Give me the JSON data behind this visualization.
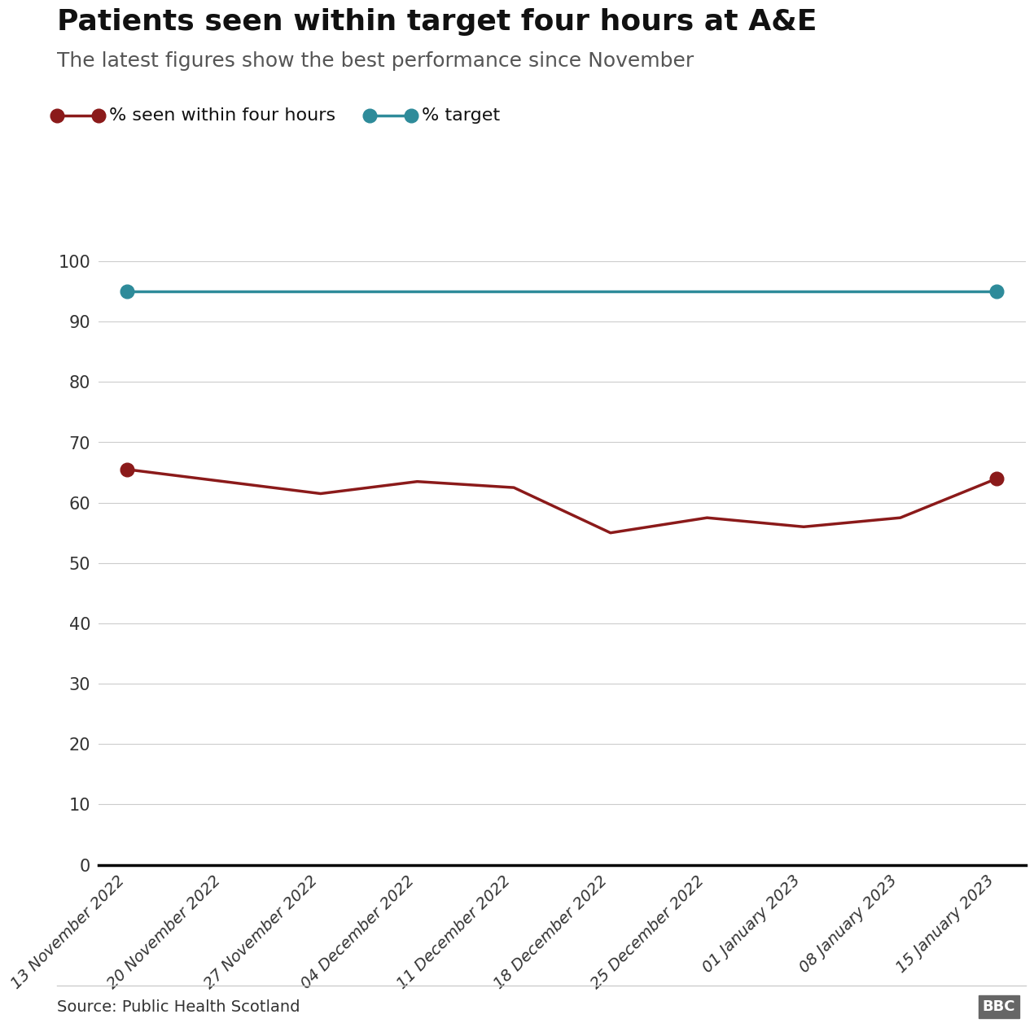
{
  "title": "Patients seen within target four hours at A&E",
  "subtitle": "The latest figures show the best performance since November",
  "x_labels": [
    "13 November 2022",
    "20 November 2022",
    "27 November 2022",
    "04 December 2022",
    "11 December 2022",
    "18 December 2022",
    "25 December 2022",
    "01 January 2023",
    "08 January 2023",
    "15 January 2023"
  ],
  "seen_values": [
    65.5,
    63.5,
    61.5,
    63.5,
    62.5,
    55.0,
    57.5,
    56.0,
    57.5,
    64.0
  ],
  "target_values": [
    95,
    95,
    95,
    95,
    95,
    95,
    95,
    95,
    95,
    95
  ],
  "seen_color": "#8B1A1A",
  "target_color": "#2E8B9A",
  "ylim": [
    0,
    100
  ],
  "yticks": [
    0,
    10,
    20,
    30,
    40,
    50,
    60,
    70,
    80,
    90,
    100
  ],
  "legend_seen_label": "% seen within four hours",
  "legend_target_label": "% target",
  "source_text": "Source: Public Health Scotland",
  "title_fontsize": 26,
  "subtitle_fontsize": 18,
  "axis_fontsize": 15,
  "legend_fontsize": 16,
  "background_color": "#ffffff",
  "grid_color": "#cccccc",
  "marker_size": 12,
  "line_width": 2.5
}
